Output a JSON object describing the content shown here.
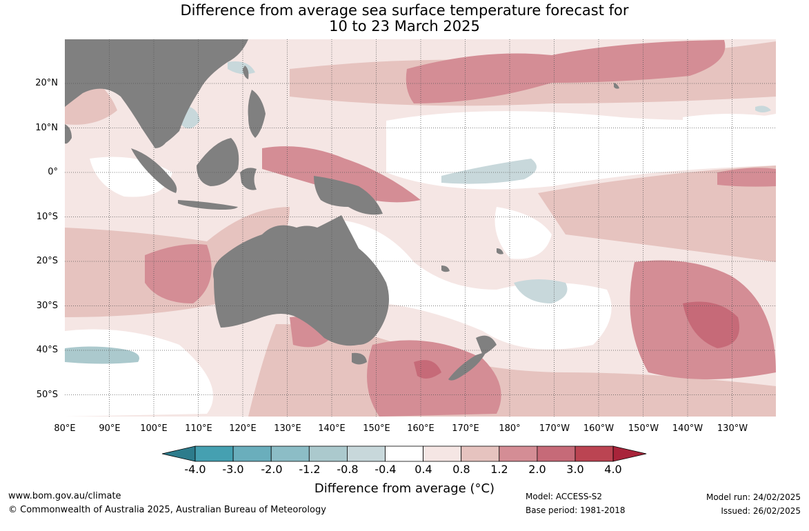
{
  "title_line1": "Difference from average sea surface temperature forecast for",
  "title_line2": "10 to 23 March 2025",
  "lat_labels": [
    "20°N",
    "10°N",
    "0°",
    "10°S",
    "20°S",
    "30°S",
    "40°S",
    "50°S"
  ],
  "lon_labels": [
    "80°E",
    "90°E",
    "100°E",
    "110°E",
    "120°E",
    "130°E",
    "140°E",
    "150°E",
    "160°E",
    "170°E",
    "180°",
    "170°W",
    "160°W",
    "150°W",
    "140°W",
    "130°W"
  ],
  "colorbar": {
    "ticks": [
      "-4.0",
      "-3.0",
      "-2.0",
      "-1.2",
      "-0.8",
      "-0.4",
      "0.4",
      "0.8",
      "1.2",
      "2.0",
      "3.0",
      "4.0"
    ],
    "colors": [
      "#2d7c8c",
      "#45a0b1",
      "#6aaebc",
      "#8cbdc6",
      "#abc9cd",
      "#c8d8db",
      "#ffffff",
      "#f5e6e4",
      "#e6c3bf",
      "#d48d95",
      "#c66a78",
      "#bb4452",
      "#a8243a"
    ],
    "label": "Difference from average (°C)"
  },
  "footer": {
    "website": "www.bom.gov.au/climate",
    "copyright": "© Commonwealth of Australia 2025, Australian Bureau of Meteorology",
    "model": "Model: ACCESS-S2",
    "base_period": "Base period: 1981-2018",
    "model_run": "Model run: 24/02/2025",
    "issued": "Issued: 26/02/2025"
  },
  "map_colors": {
    "land": "#808080",
    "cold": "#c8d8db",
    "cold2": "#abc9cd",
    "warm1": "#f5e6e4",
    "warm2": "#e6c3bf",
    "warm3": "#d48d95",
    "warm4": "#c66a78"
  }
}
